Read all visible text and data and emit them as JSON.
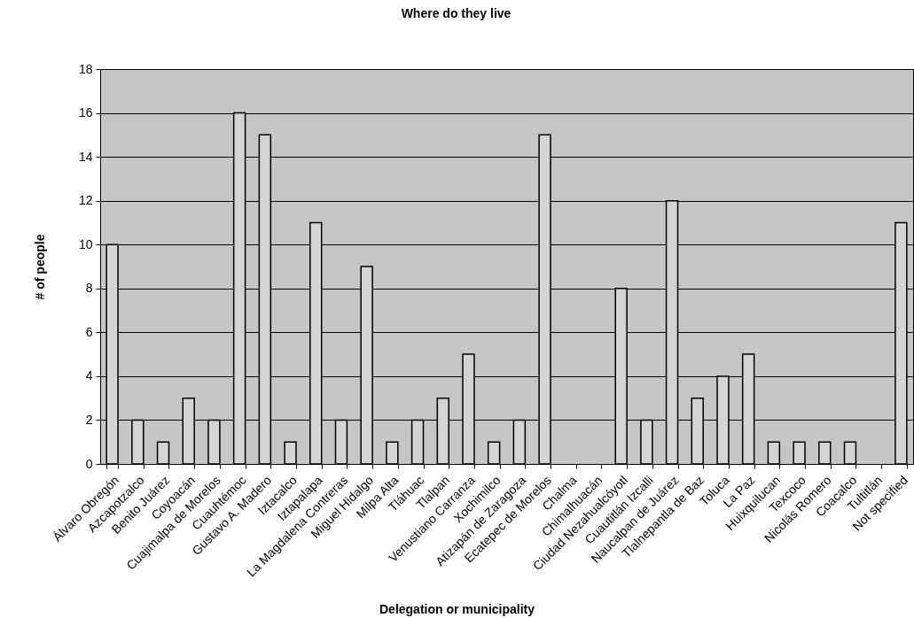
{
  "chart_data": {
    "type": "bar",
    "title": "Where do they live",
    "xlabel": "Delegation or municipality",
    "ylabel": "# of people",
    "categories": [
      "Álvaro Obregón",
      "Azcapotzalco",
      "Benito Juárez",
      "Coyoacán",
      "Cuajimalpa de Morelos",
      "Cuauhtémoc",
      "Gustavo A. Madero",
      "Iztacalco",
      "Iztapalapa",
      "La Magdalena Contreras",
      "Miguel Hidalgo",
      "Milpa Alta",
      "Tláhuac",
      "Tlalpan",
      "Venustiano Carranza",
      "Xochimilco",
      "Atizapán de Zaragoza",
      "Ecatepec de Morelos",
      "Chalma",
      "Chimalhuacán",
      "Ciudad Nezahualcóyotl",
      "Cuautitlán Izcalli",
      "Naucalpan de Juárez",
      "Tlalnepantla de Baz",
      "Toluca",
      "La Paz",
      "Huixquilucan",
      "Texcoco",
      "Nicolás Romero",
      "Coacalco",
      "Tultitlán",
      "Not specified"
    ],
    "values": [
      10,
      2,
      1,
      3,
      2,
      16,
      15,
      1,
      11,
      2,
      9,
      1,
      2,
      3,
      5,
      1,
      2,
      15,
      0,
      0,
      8,
      2,
      12,
      3,
      4,
      5,
      1,
      1,
      1,
      1,
      0,
      11
    ],
    "color": "#d4d4d4",
    "ylim": [
      0,
      18
    ],
    "yticks": [
      0,
      2,
      4,
      6,
      8,
      10,
      12,
      14,
      16,
      18
    ],
    "grid": "y"
  }
}
